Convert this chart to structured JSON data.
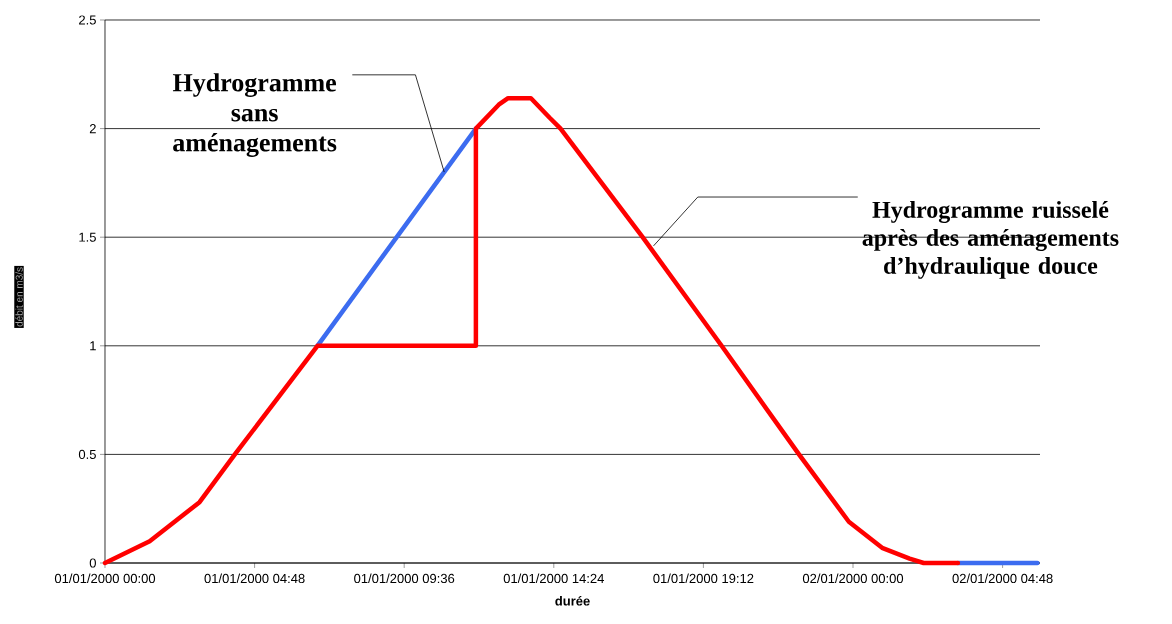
{
  "chart_data": {
    "type": "line",
    "xlabel": "durée",
    "ylabel": "débit en m3/s",
    "xlim": [
      "2000-01-01T00:00",
      "2000-01-02T06:00"
    ],
    "ylim": [
      0,
      2.5
    ],
    "xticks": [
      {
        "value": "2000-01-01T00:00",
        "label": "01/01/2000 00:00"
      },
      {
        "value": "2000-01-01T04:48",
        "label": "01/01/2000 04:48"
      },
      {
        "value": "2000-01-01T09:36",
        "label": "01/01/2000 09:36"
      },
      {
        "value": "2000-01-01T14:24",
        "label": "01/01/2000 14:24"
      },
      {
        "value": "2000-01-01T19:12",
        "label": "01/01/2000 19:12"
      },
      {
        "value": "2000-01-02T00:00",
        "label": "02/01/2000 00:00"
      },
      {
        "value": "2000-01-02T04:48",
        "label": "02/01/2000 04:48"
      }
    ],
    "yticks": [
      0,
      0.5,
      1,
      1.5,
      2,
      2.5
    ],
    "grid": "y",
    "legend": false,
    "marker": "none",
    "line_style": "solid",
    "series": [
      {
        "color": "#3c6cf0",
        "x": [
          "2000-01-01T06:49",
          "2000-01-01T11:54"
        ],
        "values": [
          1,
          2
        ]
      },
      {
        "color": "#3c6cf0",
        "x": [
          "2000-01-02T03:22",
          "2000-01-02T05:55"
        ],
        "values": [
          0,
          0
        ]
      },
      {
        "color": "#ff0000",
        "x": [
          "2000-01-01T00:00",
          "2000-01-01T01:26",
          "2000-01-01T03:02",
          "2000-01-01T04:10",
          "2000-01-01T06:49",
          "2000-01-01T11:54",
          "2000-01-01T11:54",
          "2000-01-01T12:38",
          "2000-01-01T12:56",
          "2000-01-01T13:40",
          "2000-01-01T14:16",
          "2000-01-01T14:37",
          "2000-01-01T17:15",
          "2000-01-01T19:47",
          "2000-01-01T22:16",
          "2000-01-01T23:52",
          "2000-01-02T00:56",
          "2000-01-02T01:49",
          "2000-01-02T02:16",
          "2000-01-02T03:22"
        ],
        "values": [
          0,
          0.1,
          0.28,
          0.5,
          1,
          1,
          2,
          2.11,
          2.14,
          2.14,
          2.05,
          2,
          1.5,
          1,
          0.5,
          0.19,
          0.07,
          0.02,
          0,
          0
        ]
      }
    ],
    "annotations": [
      {
        "text": "Hydrogramme sans aménagements",
        "x": "2000-01-01T10:53",
        "y": 1.8
      },
      {
        "text": "Hydrogramme ruisselé après des aménagements d’hydraulique douce",
        "x": "2000-01-01T17:36",
        "y": 1.46
      }
    ]
  }
}
